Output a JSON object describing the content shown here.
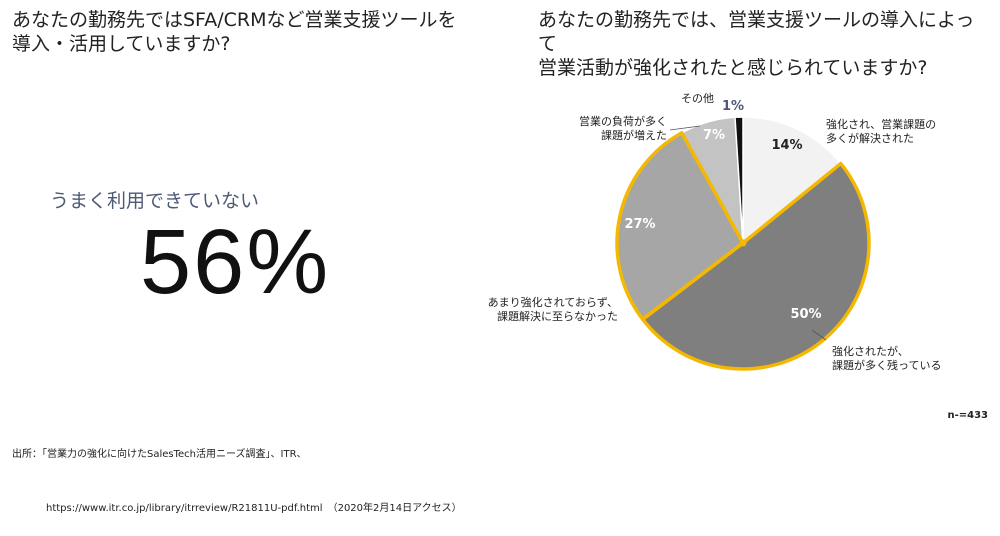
{
  "left_panel": {
    "question_line1": "あなたの勤務先ではSFA/CRMなど営業支援ツールを",
    "question_line2": "導入・活用していますか?",
    "sub_label": "うまく利用できていない",
    "big_value": "56%"
  },
  "right_panel": {
    "question_line1": "あなたの勤務先では、営業支援ツールの導入によって",
    "question_line2": "営業活動が強化されたと感じられていますか?"
  },
  "chart_data": {
    "type": "pie",
    "slices": [
      {
        "label_lines": [
          "強化され、営業課題の",
          "多くが解決された"
        ],
        "value": 14,
        "pct_label": "14%",
        "color": "#f2f2f2",
        "pct_color": "#222222"
      },
      {
        "label_lines": [
          "強化されたが、",
          "課題が多く残っている"
        ],
        "value": 50,
        "pct_label": "50%",
        "color": "#7f7f7f",
        "pct_color": "#ffffff"
      },
      {
        "label_lines": [
          "あまり強化されておらず、",
          "課題解決に至らなかった"
        ],
        "value": 27,
        "pct_label": "27%",
        "color": "#a6a6a6",
        "pct_color": "#ffffff"
      },
      {
        "label_lines": [
          "営業の負荷が多く",
          "課題が増えた"
        ],
        "value": 7,
        "pct_label": "7%",
        "color": "#c3c3c3",
        "pct_color": "#ffffff"
      },
      {
        "label_lines": [
          "その他"
        ],
        "value": 1,
        "pct_label": "1%",
        "color": "#111111",
        "pct_color": "#4d5a75"
      }
    ],
    "highlight_color": "#f5b800",
    "highlighted_slices": [
      1,
      2
    ]
  },
  "footer": {
    "source_line1": "出所：「営業力の強化に向けたSalesTech活用ニーズ調査」、ITR、",
    "source_line2": "https://www.itr.co.jp/library/itrreview/R21811U-pdf.html　（2020年2月14日アクセス）",
    "n_value": "n-=433"
  }
}
